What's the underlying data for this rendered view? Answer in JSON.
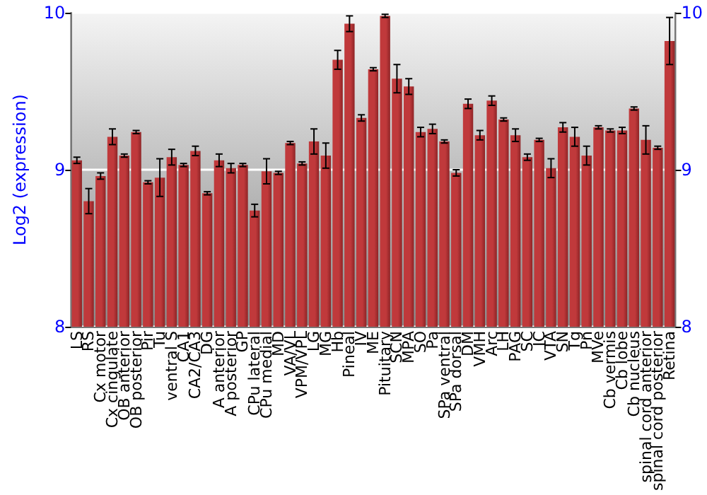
{
  "chart_data": {
    "type": "bar",
    "ylabel": "Log2 (expression)",
    "categories": [
      "LS",
      "RS",
      "Cx motor",
      "Cx cingulate",
      "OB anterior",
      "OB posterior",
      "Pir",
      "Tu",
      "ventral S",
      "CA1",
      "CA2/CA3",
      "DG",
      "A anterior",
      "A posterior",
      "GP",
      "CPu lateral",
      "CPu medial",
      "MD",
      "VA/VL",
      "VPM/VPL",
      "LG",
      "MG",
      "Hb",
      "Pineal",
      "IV",
      "ME",
      "Pituitary",
      "SCN",
      "MPA",
      "SO",
      "Pa",
      "SPa ventral",
      "SPa dorsal",
      "DM",
      "VMH",
      "Arc",
      "LH",
      "PAG",
      "SC",
      "IC",
      "VTA",
      "SN",
      "Tg",
      "Pn",
      "MVe",
      "Cb vermis",
      "Cb lobe",
      "Cb nucleus",
      "spinal cord anterior",
      "spinal cord posterior",
      "Retina"
    ],
    "values": [
      9.06,
      8.8,
      8.96,
      9.21,
      9.09,
      9.24,
      8.92,
      8.95,
      9.08,
      9.03,
      9.12,
      8.85,
      9.06,
      9.01,
      9.03,
      8.74,
      8.99,
      8.98,
      9.17,
      9.04,
      9.18,
      9.09,
      9.7,
      9.93,
      9.33,
      9.64,
      9.98,
      9.58,
      9.53,
      9.24,
      9.26,
      9.18,
      8.98,
      9.42,
      9.22,
      9.44,
      9.32,
      9.22,
      9.08,
      9.19,
      9.01,
      9.27,
      9.21,
      9.09,
      9.27,
      9.25,
      9.25,
      9.39,
      9.19,
      9.14,
      9.82
    ],
    "errors": [
      0.02,
      0.08,
      0.02,
      0.05,
      0.01,
      0.01,
      0.01,
      0.12,
      0.05,
      0.01,
      0.03,
      0.01,
      0.04,
      0.03,
      0.01,
      0.04,
      0.08,
      0.01,
      0.01,
      0.01,
      0.08,
      0.08,
      0.06,
      0.05,
      0.02,
      0.01,
      0.01,
      0.09,
      0.05,
      0.03,
      0.03,
      0.01,
      0.02,
      0.03,
      0.03,
      0.03,
      0.01,
      0.04,
      0.02,
      0.01,
      0.06,
      0.03,
      0.06,
      0.06,
      0.01,
      0.01,
      0.02,
      0.01,
      0.09,
      0.01,
      0.15
    ],
    "color": "#c0393b",
    "ylim": [
      8,
      10
    ],
    "yticks": [
      8,
      9,
      10
    ],
    "y2lim": [
      8,
      10
    ],
    "y2ticks": [
      8,
      9,
      10
    ],
    "grid": "y"
  }
}
